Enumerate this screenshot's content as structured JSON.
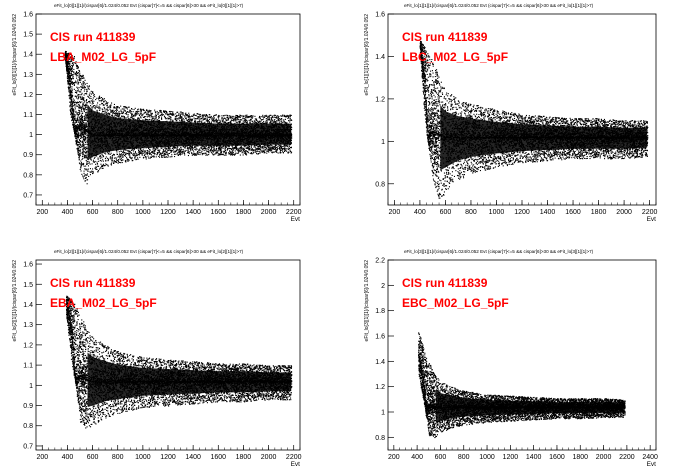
{
  "page": {
    "background": "#ffffff"
  },
  "chart_data": [
    {
      "type": "scatter",
      "title": "eFit_lo[0][1][1]/(cispar[6]/1.024/0.052 Evt (cispar[7]<=5 && cispar[6]>30 && eFit_lo[0][1][1]>7)",
      "annotations": [
        "CIS run 411839",
        "LBA_M02_LG_5pF"
      ],
      "xlabel": "Evt",
      "ylabel": "eFit_lo[0][1][1]/(cispar[6]/1.024/0.052",
      "xlim": [
        150,
        2250
      ],
      "ylim": [
        0.65,
        1.6
      ],
      "xticks": [
        "200",
        "400",
        "600",
        "800",
        "1000",
        "1200",
        "1400",
        "1600",
        "1800",
        "2000",
        "2200"
      ],
      "yticks": [
        "0.7",
        "0.8",
        "0.9",
        "1",
        "1.1",
        "1.2",
        "1.3",
        "1.4",
        "1.5",
        "1.6"
      ],
      "color": "#000000",
      "annotation_color": "#ff0000",
      "series": [
        {
          "name": "",
          "x": [
            380,
            420,
            450,
            500,
            550,
            600,
            700,
            800,
            1000,
            1200,
            1400,
            1600,
            1800,
            2000,
            2180
          ],
          "center": [
            1.4,
            1.25,
            1.03,
            1.05,
            1.02,
            1.0,
            1.0,
            1.0,
            1.0,
            1.0,
            1.0,
            1.0,
            1.0,
            1.0,
            1.0
          ],
          "upper": [
            1.42,
            1.4,
            1.4,
            1.32,
            1.27,
            1.22,
            1.18,
            1.15,
            1.13,
            1.12,
            1.11,
            1.1,
            1.1,
            1.1,
            1.1
          ],
          "lower": [
            1.38,
            1.1,
            1.02,
            0.82,
            0.75,
            0.8,
            0.84,
            0.86,
            0.88,
            0.89,
            0.9,
            0.9,
            0.9,
            0.91,
            0.91
          ]
        }
      ],
      "grid": false,
      "legend": "none"
    },
    {
      "type": "scatter",
      "title": "eFit_lo[1][1][1]/(cispar[6]/1.024/0.052 Evt (cispar[7]<=5 && cispar[6]>30 && eFit_lo[1][1][1]>7)",
      "annotations": [
        "CIS run 411839",
        "LBC_M02_LG_5pF"
      ],
      "xlabel": "Evt",
      "ylabel": "eFit_lo[1][1][1]/(cispar[6]/1.024/0.052",
      "xlim": [
        150,
        2250
      ],
      "ylim": [
        0.7,
        1.6
      ],
      "xticks": [
        "200",
        "400",
        "600",
        "800",
        "1000",
        "1200",
        "1400",
        "1600",
        "1800",
        "2000",
        "2200"
      ],
      "yticks": [
        "0.8",
        "1",
        "1.2",
        "1.4",
        "1.6"
      ],
      "color": "#000000",
      "annotation_color": "#ff0000",
      "series": [
        {
          "name": "",
          "x": [
            400,
            430,
            460,
            500,
            550,
            600,
            700,
            800,
            1000,
            1200,
            1400,
            1600,
            1800,
            2000,
            2180
          ],
          "center": [
            1.45,
            1.3,
            1.03,
            1.05,
            1.03,
            1.02,
            1.02,
            1.02,
            1.02,
            1.02,
            1.02,
            1.02,
            1.02,
            1.02,
            1.02
          ],
          "upper": [
            1.48,
            1.45,
            1.42,
            1.38,
            1.3,
            1.24,
            1.2,
            1.18,
            1.15,
            1.13,
            1.12,
            1.11,
            1.11,
            1.1,
            1.1
          ],
          "lower": [
            1.42,
            1.15,
            1.0,
            0.82,
            0.72,
            0.76,
            0.82,
            0.85,
            0.88,
            0.9,
            0.91,
            0.92,
            0.92,
            0.92,
            0.93
          ]
        }
      ],
      "grid": false,
      "legend": "none"
    },
    {
      "type": "scatter",
      "title": "eFit_lo[2][1][1]/(cispar[6]/1.024/0.052 Evt (cispar[7]<=5 && cispar[6]>30 && eFit_lo[2][1][1]>7)",
      "annotations": [
        "CIS run 411839",
        "EBA_M02_LG_5pF"
      ],
      "xlabel": "Evt",
      "ylabel": "eFit_lo[2][1][1]/(cispar[6]/1.024/0.052",
      "xlim": [
        150,
        2250
      ],
      "ylim": [
        0.68,
        1.62
      ],
      "xticks": [
        "200",
        "400",
        "600",
        "800",
        "1000",
        "1200",
        "1400",
        "1600",
        "1800",
        "2000",
        "2200"
      ],
      "yticks": [
        "0.7",
        "0.8",
        "0.9",
        "1",
        "1.1",
        "1.2",
        "1.3",
        "1.4",
        "1.5",
        "1.6"
      ],
      "color": "#000000",
      "annotation_color": "#ff0000",
      "series": [
        {
          "name": "",
          "x": [
            390,
            430,
            460,
            500,
            550,
            600,
            700,
            800,
            1000,
            1200,
            1400,
            1600,
            1800,
            2000,
            2180
          ],
          "center": [
            1.4,
            1.28,
            1.04,
            1.05,
            1.03,
            1.02,
            1.02,
            1.02,
            1.02,
            1.02,
            1.02,
            1.02,
            1.02,
            1.02,
            1.02
          ],
          "upper": [
            1.45,
            1.42,
            1.4,
            1.36,
            1.28,
            1.24,
            1.2,
            1.17,
            1.14,
            1.13,
            1.12,
            1.11,
            1.11,
            1.1,
            1.1
          ],
          "lower": [
            1.35,
            1.12,
            1.02,
            0.82,
            0.78,
            0.8,
            0.84,
            0.86,
            0.89,
            0.9,
            0.91,
            0.92,
            0.92,
            0.93,
            0.93
          ]
        }
      ],
      "grid": false,
      "legend": "none"
    },
    {
      "type": "scatter",
      "title": "eFit_lo[3][1][1]/(cispar[6]/1.024/0.052 Evt (cispar[7]<=5 && cispar[6]>30 && eFit_lo[3][1][1]>7)",
      "annotations": [
        "CIS run 411839",
        "EBC_M02_LG_5pF"
      ],
      "xlabel": "Evt",
      "ylabel": "eFit_lo[3][1][1]/(cispar[6]/1.024/0.052",
      "xlim": [
        150,
        2450
      ],
      "ylim": [
        0.7,
        2.2
      ],
      "xticks": [
        "200",
        "400",
        "600",
        "800",
        "1000",
        "1200",
        "1400",
        "1600",
        "1800",
        "2000",
        "2200",
        "2400"
      ],
      "yticks": [
        "0.8",
        "1",
        "1.2",
        "1.4",
        "1.6",
        "1.8",
        "2",
        "2.2"
      ],
      "color": "#000000",
      "annotation_color": "#ff0000",
      "series": [
        {
          "name": "",
          "x": [
            410,
            440,
            470,
            500,
            550,
            600,
            700,
            800,
            1000,
            1200,
            1400,
            1600,
            1800,
            2000,
            2180
          ],
          "center": [
            1.45,
            1.3,
            1.05,
            1.05,
            1.04,
            1.04,
            1.04,
            1.04,
            1.04,
            1.04,
            1.04,
            1.04,
            1.04,
            1.04,
            1.04
          ],
          "upper": [
            1.65,
            1.55,
            1.45,
            1.4,
            1.3,
            1.24,
            1.2,
            1.17,
            1.14,
            1.13,
            1.12,
            1.11,
            1.11,
            1.11,
            1.1
          ],
          "lower": [
            1.3,
            1.15,
            1.0,
            0.82,
            0.8,
            0.84,
            0.88,
            0.9,
            0.92,
            0.93,
            0.94,
            0.95,
            0.95,
            0.96,
            0.96
          ]
        }
      ],
      "grid": false,
      "legend": "none"
    }
  ]
}
